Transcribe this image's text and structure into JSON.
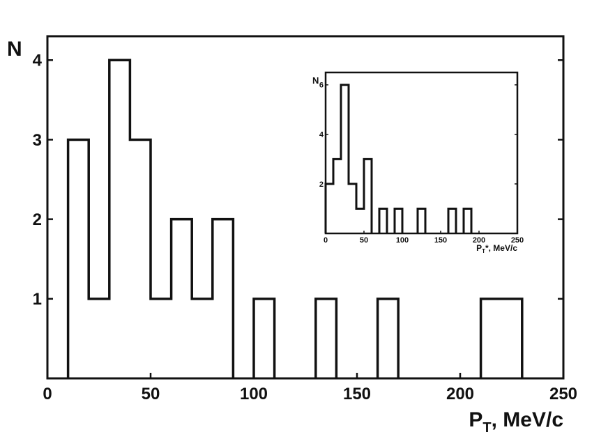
{
  "chart_data": [
    {
      "type": "histogram",
      "role": "main",
      "xlabel": "P",
      "xlabel_sub": "T",
      "xlabel_unit": ", MeV/c",
      "ylabel": "N",
      "xlim": [
        0,
        250
      ],
      "ylim": [
        0,
        4.3
      ],
      "x_ticks": [
        0,
        50,
        100,
        150,
        200,
        250
      ],
      "y_ticks": [
        1,
        2,
        3,
        4
      ],
      "bins": [
        {
          "x0": 10,
          "x1": 20,
          "count": 3
        },
        {
          "x0": 20,
          "x1": 30,
          "count": 1
        },
        {
          "x0": 30,
          "x1": 40,
          "count": 4
        },
        {
          "x0": 40,
          "x1": 50,
          "count": 3
        },
        {
          "x0": 50,
          "x1": 60,
          "count": 1
        },
        {
          "x0": 60,
          "x1": 70,
          "count": 2
        },
        {
          "x0": 70,
          "x1": 80,
          "count": 1
        },
        {
          "x0": 80,
          "x1": 90,
          "count": 2
        },
        {
          "x0": 100,
          "x1": 110,
          "count": 1
        },
        {
          "x0": 130,
          "x1": 140,
          "count": 1
        },
        {
          "x0": 160,
          "x1": 170,
          "count": 1
        },
        {
          "x0": 210,
          "x1": 230,
          "count": 1
        }
      ],
      "grid": false
    },
    {
      "type": "histogram",
      "role": "inset",
      "xlabel": "P",
      "xlabel_sub": "T",
      "xlabel_unit": "*, MeV/c",
      "ylabel": "N",
      "xlim": [
        0,
        250
      ],
      "ylim": [
        0,
        6.5
      ],
      "x_ticks": [
        0,
        50,
        100,
        150,
        200,
        250
      ],
      "y_ticks": [
        2,
        4,
        6
      ],
      "bins": [
        {
          "x0": 0,
          "x1": 10,
          "count": 2
        },
        {
          "x0": 10,
          "x1": 20,
          "count": 3
        },
        {
          "x0": 20,
          "x1": 30,
          "count": 6
        },
        {
          "x0": 30,
          "x1": 40,
          "count": 2
        },
        {
          "x0": 40,
          "x1": 50,
          "count": 1
        },
        {
          "x0": 50,
          "x1": 60,
          "count": 3
        },
        {
          "x0": 70,
          "x1": 80,
          "count": 1
        },
        {
          "x0": 90,
          "x1": 100,
          "count": 1
        },
        {
          "x0": 120,
          "x1": 130,
          "count": 1
        },
        {
          "x0": 160,
          "x1": 170,
          "count": 1
        },
        {
          "x0": 180,
          "x1": 190,
          "count": 1
        }
      ],
      "grid": false
    }
  ]
}
